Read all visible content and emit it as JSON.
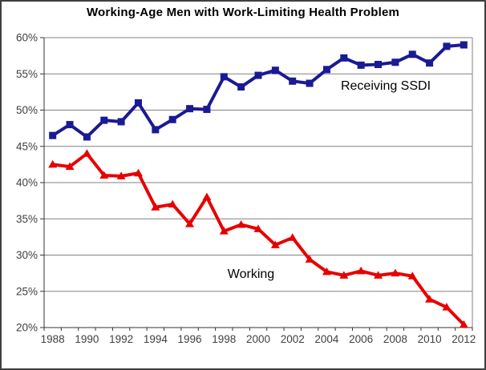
{
  "chart_data": {
    "type": "line",
    "title": "Working-Age Men with Work-Limiting Health Problem",
    "xlabel": "",
    "ylabel": "",
    "ylim": [
      20,
      60
    ],
    "ytick_step": 5,
    "ytick_labels": [
      "60%",
      "55%",
      "50%",
      "45%",
      "40%",
      "35%",
      "30%",
      "25%",
      "20%"
    ],
    "x": [
      1988,
      1989,
      1990,
      1991,
      1992,
      1993,
      1994,
      1995,
      1996,
      1997,
      1998,
      1999,
      2000,
      2001,
      2002,
      2003,
      2004,
      2005,
      2006,
      2007,
      2008,
      2009,
      2010,
      2011,
      2012
    ],
    "x_label_every": 2,
    "grid": "horizontal",
    "legend_position": "none",
    "series": [
      {
        "name": "Receiving SSDI",
        "marker": "square",
        "color": "#1a1a94",
        "values": [
          46.5,
          48.0,
          46.3,
          48.6,
          48.4,
          51.0,
          47.3,
          48.7,
          50.2,
          50.1,
          54.6,
          53.2,
          54.8,
          55.5,
          54.0,
          53.7,
          55.6,
          57.2,
          56.2,
          56.3,
          56.6,
          57.7,
          56.5,
          58.8,
          59.0
        ]
      },
      {
        "name": "Working",
        "marker": "triangle",
        "color": "#e60000",
        "values": [
          42.5,
          42.2,
          44.0,
          41.0,
          40.9,
          41.3,
          36.6,
          37.0,
          34.3,
          38.0,
          33.3,
          34.2,
          33.6,
          31.4,
          32.4,
          29.4,
          27.7,
          27.2,
          27.8,
          27.2,
          27.5,
          27.1,
          23.9,
          22.8,
          20.4
        ]
      }
    ],
    "annotations": [
      {
        "text": "Receiving SSDI",
        "x": 479,
        "y": 106
      },
      {
        "text": "Working",
        "x": 311,
        "y": 341
      }
    ],
    "colors": {
      "gridline": "#808080",
      "axis": "#333333",
      "tick_label": "#404040",
      "background": "#ffffff",
      "frame_border": "#3f3f3f"
    }
  }
}
